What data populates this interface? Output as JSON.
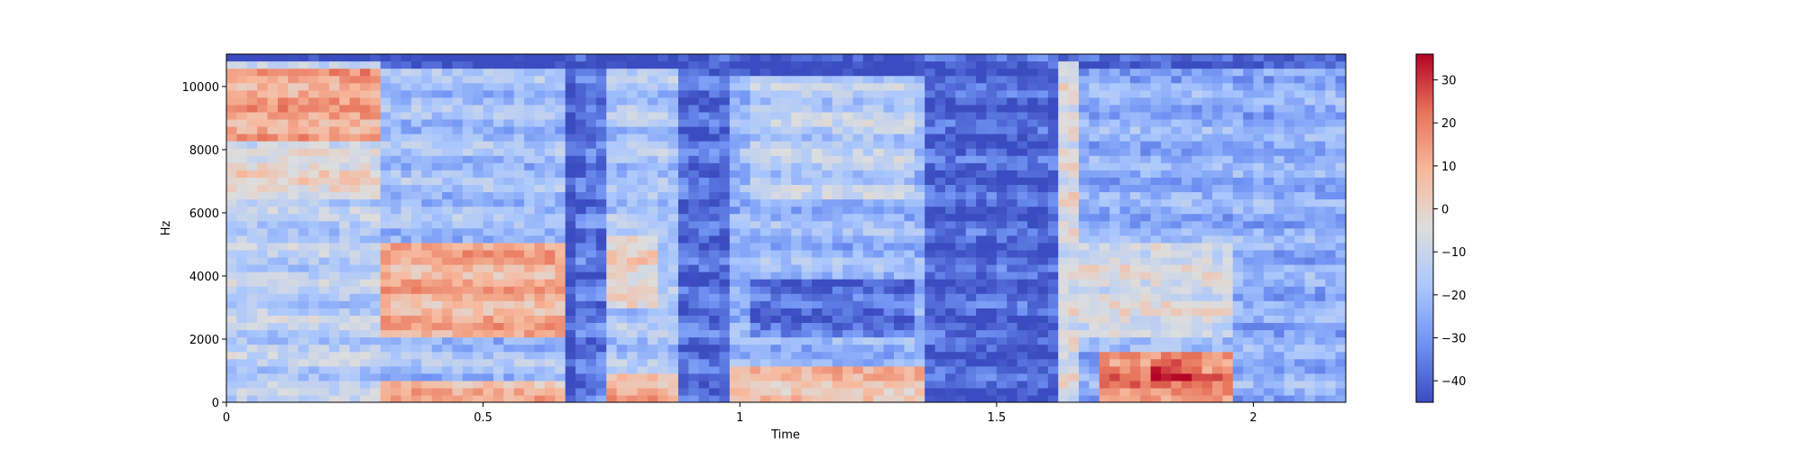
{
  "chart_data": {
    "type": "heatmap",
    "subtype": "spectrogram",
    "title": "",
    "xlabel": "Time",
    "ylabel": "Hz",
    "xlim": [
      0,
      2.18
    ],
    "ylim": [
      0,
      11025
    ],
    "x_ticks": [
      0,
      0.5,
      1,
      1.5,
      2
    ],
    "x_tick_labels": [
      "0",
      "0.5",
      "1",
      "1.5",
      "2"
    ],
    "y_ticks": [
      0,
      2000,
      4000,
      6000,
      8000,
      10000
    ],
    "y_tick_labels": [
      "0",
      "2000",
      "4000",
      "6000",
      "8000",
      "10000"
    ],
    "colormap": "coolwarm",
    "colormap_stops": [
      "#3b4cc0",
      "#6f92f3",
      "#aac7fd",
      "#dddddd",
      "#f7b89c",
      "#e7745b",
      "#b40426"
    ],
    "colorbar": {
      "vmin": -45,
      "vmax": 36,
      "ticks": [
        -40,
        -30,
        -20,
        -10,
        0,
        10,
        20,
        30
      ],
      "tick_labels": [
        "−40",
        "−30",
        "−20",
        "−10",
        "0",
        "10",
        "20",
        "30"
      ]
    },
    "grid": false,
    "time_step": 0.02,
    "freq_step": 230,
    "regions": [
      {
        "t": [
          0.0,
          0.31
        ],
        "f": [
          0,
          10900
        ],
        "level": -14
      },
      {
        "t": [
          0.0,
          0.3
        ],
        "f": [
          8200,
          10600
        ],
        "level": 12
      },
      {
        "t": [
          0.0,
          0.3
        ],
        "f": [
          6500,
          8000
        ],
        "level": -2
      },
      {
        "t": [
          0.31,
          0.67
        ],
        "f": [
          0,
          10600
        ],
        "level": -20
      },
      {
        "t": [
          0.31,
          0.67
        ],
        "f": [
          2000,
          5000
        ],
        "level": 10
      },
      {
        "t": [
          0.3,
          0.67
        ],
        "f": [
          0,
          700
        ],
        "level": 8
      },
      {
        "t": [
          0.68,
          0.75
        ],
        "f": [
          0,
          11025
        ],
        "level": -36
      },
      {
        "t": [
          0.74,
          0.89
        ],
        "f": [
          0,
          10600
        ],
        "level": -18
      },
      {
        "t": [
          0.74,
          0.89
        ],
        "f": [
          0,
          1000
        ],
        "level": 10
      },
      {
        "t": [
          0.74,
          0.85
        ],
        "f": [
          3000,
          5400
        ],
        "level": 0
      },
      {
        "t": [
          0.89,
          0.98
        ],
        "f": [
          0,
          11025
        ],
        "level": -38
      },
      {
        "t": [
          0.98,
          1.36
        ],
        "f": [
          0,
          10400
        ],
        "level": -22
      },
      {
        "t": [
          1.03,
          1.35
        ],
        "f": [
          6500,
          10200
        ],
        "level": -14
      },
      {
        "t": [
          1.03,
          1.35
        ],
        "f": [
          2000,
          4000
        ],
        "level": -38
      },
      {
        "t": [
          0.98,
          1.36
        ],
        "f": [
          0,
          1200
        ],
        "level": 6
      },
      {
        "t": [
          1.36,
          1.62
        ],
        "f": [
          0,
          11025
        ],
        "level": -40
      },
      {
        "t": [
          1.62,
          1.67
        ],
        "f": [
          0,
          10800
        ],
        "level": -4
      },
      {
        "t": [
          1.66,
          2.18
        ],
        "f": [
          0,
          10600
        ],
        "level": -24
      },
      {
        "t": [
          1.66,
          1.96
        ],
        "f": [
          2000,
          5000
        ],
        "level": -6
      },
      {
        "t": [
          1.7,
          1.96
        ],
        "f": [
          0,
          1600
        ],
        "level": 18
      },
      {
        "t": [
          1.8,
          1.9
        ],
        "f": [
          700,
          1400
        ],
        "level": 30
      }
    ]
  }
}
